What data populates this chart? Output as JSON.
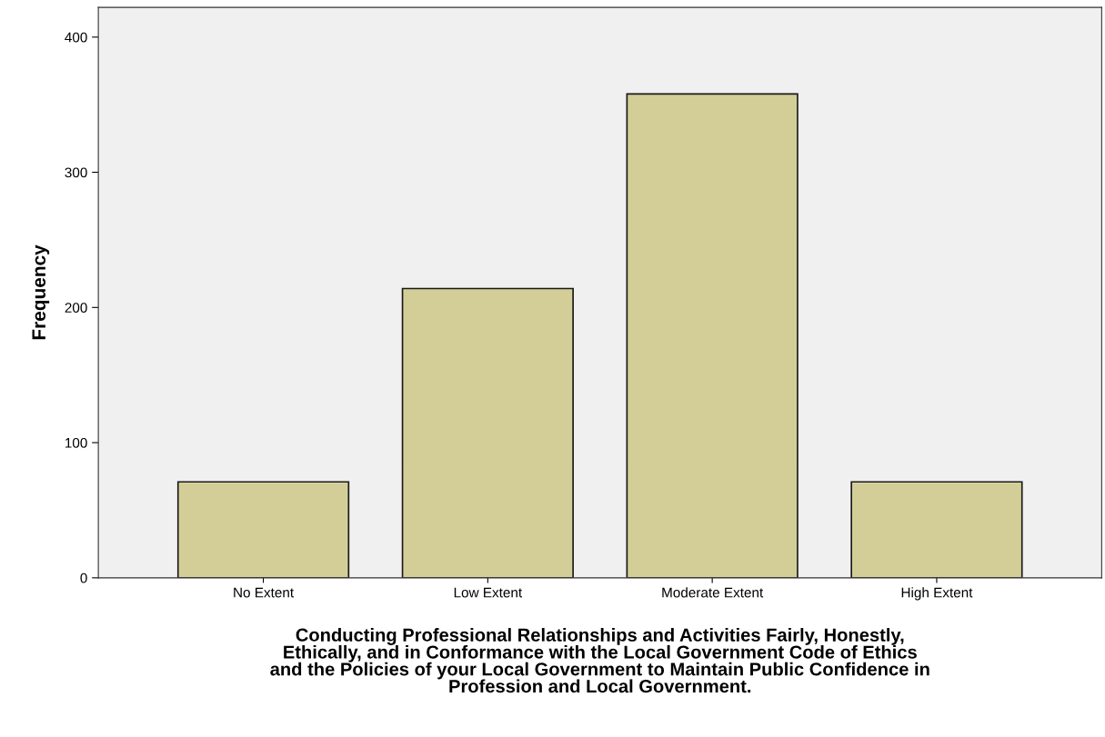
{
  "chart_data": {
    "type": "bar",
    "xlabel": "Conducting Professional Relationships and Activities Fairly, Honestly,\nEthically, and in Conformance with the Local Government Code of Ethics\nand the Policies of your Local Government to Maintain Public Confidence in\nProfession and Local Government.",
    "ylabel": "Frequency",
    "categories": [
      "No Extent",
      "Low Extent",
      "Moderate Extent",
      "High Extent"
    ],
    "values": [
      71,
      214,
      358,
      71
    ],
    "color": "#d3ce97",
    "ylim": [
      0,
      422
    ],
    "yticks": [
      0,
      100,
      200,
      300,
      400
    ],
    "grid": false
  }
}
